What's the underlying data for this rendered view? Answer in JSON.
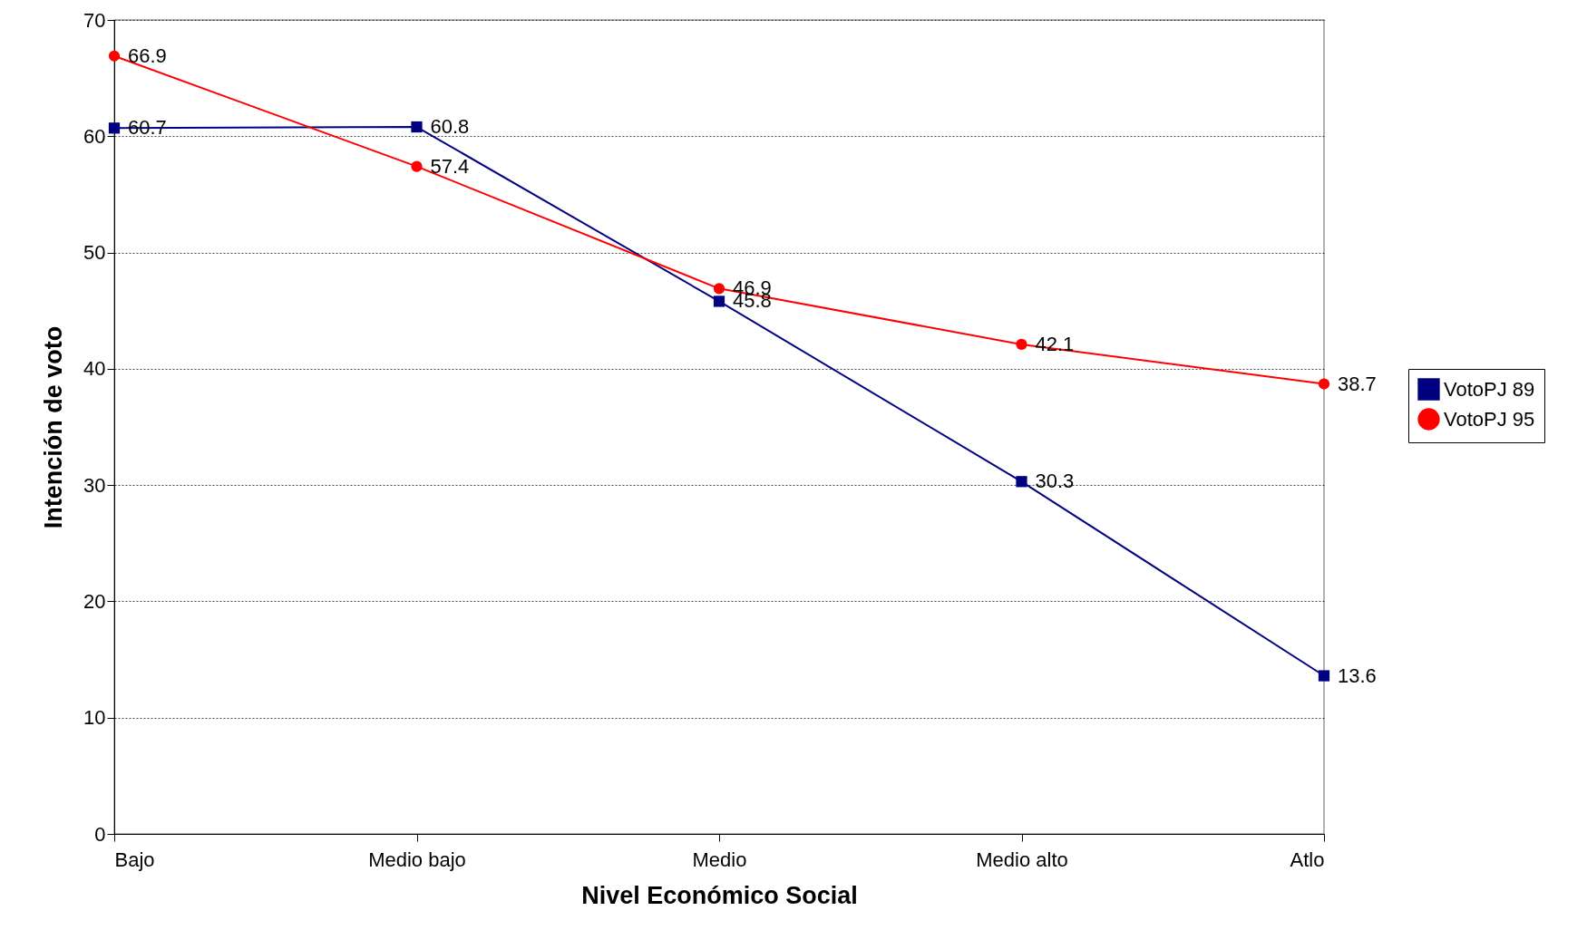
{
  "chart_data": {
    "type": "line",
    "xlabel": "Nivel Económico Social",
    "ylabel": "Intención de voto",
    "categories": [
      "Bajo",
      "Medio bajo",
      "Medio",
      "Medio alto",
      "Atlo"
    ],
    "series": [
      {
        "name": "VotoPJ 89",
        "color": "#000080",
        "marker": "square",
        "values": [
          60.7,
          60.8,
          45.8,
          30.3,
          13.6
        ]
      },
      {
        "name": "VotoPJ 95",
        "color": "#ff0000",
        "marker": "circle",
        "values": [
          66.9,
          57.4,
          46.9,
          42.1,
          38.7
        ]
      }
    ],
    "ylim": [
      0,
      70
    ],
    "yticks": [
      0,
      10,
      20,
      30,
      40,
      50,
      60,
      70
    ],
    "grid": "y",
    "legend": "right",
    "data_labels": true
  }
}
